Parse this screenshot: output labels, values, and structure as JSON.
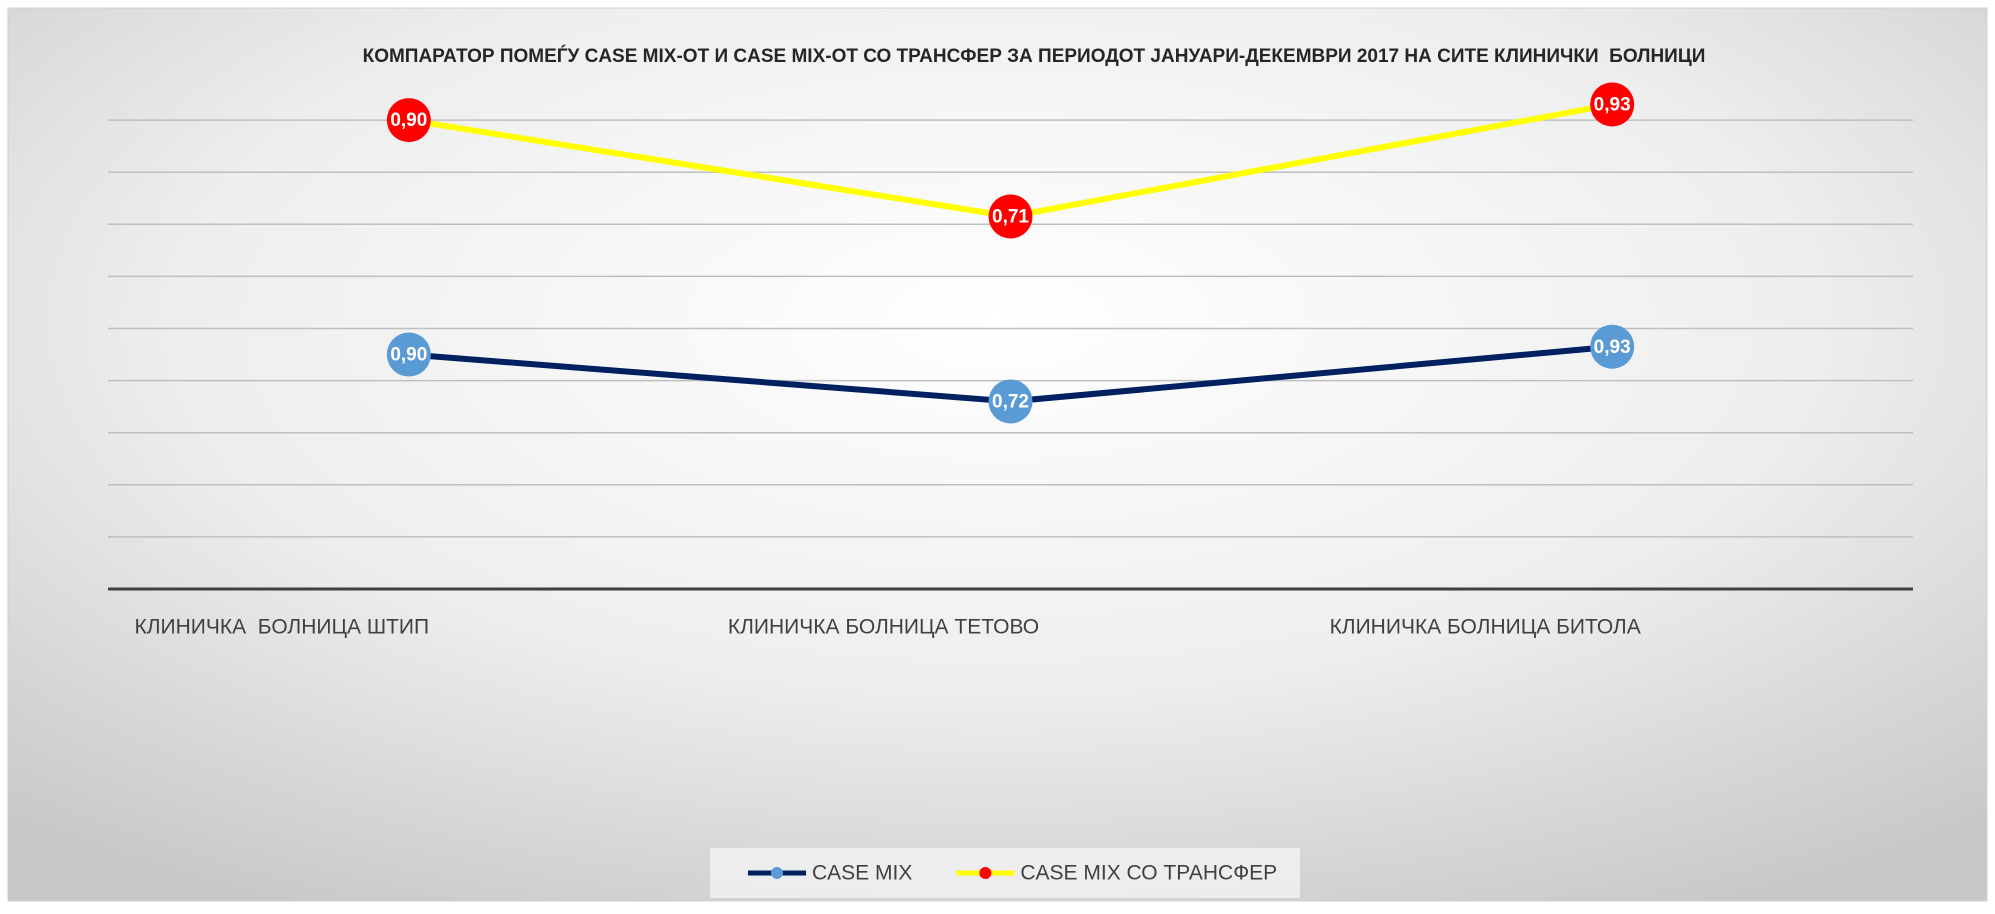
{
  "chart_data": {
    "type": "line",
    "stacked": true,
    "title": "КОМПАРАТОР ПОМЕЃУ CASE MIX-ОТ И CASE MIX-ОТ СО ТРАНСФЕР ЗА ПЕРИОДОТ ЈАНУАРИ-ДЕКЕМВРИ 2017 НА СИТЕ КЛИНИЧКИ  БОЛНИЦИ",
    "categories": [
      "КЛИНИЧКА  БОЛНИЦА ШТИП",
      "КЛИНИЧКА БОЛНИЦА ТЕТОВО",
      "КЛИНИЧКА БОЛНИЦА БИТОЛА"
    ],
    "series": [
      {
        "name": "CASE MIX",
        "color": "#002060",
        "marker_color": "#5b9bd5",
        "values": [
          0.9,
          0.72,
          0.93
        ],
        "value_labels": [
          "0,90",
          "0,72",
          "0,93"
        ]
      },
      {
        "name": "CASE MIX СО ТРАНСФЕР",
        "color": "#ffff00",
        "marker_color": "#ff0000",
        "values": [
          0.9,
          0.71,
          0.93
        ],
        "value_labels": [
          "0,90",
          "0,71",
          "0,93"
        ]
      }
    ],
    "ylim": [
      0,
      2
    ],
    "yticks": [
      0,
      0.2,
      0.4,
      0.6,
      0.8,
      1,
      1.2,
      1.4,
      1.6,
      1.8
    ],
    "grid": true,
    "legend": "bottom"
  }
}
